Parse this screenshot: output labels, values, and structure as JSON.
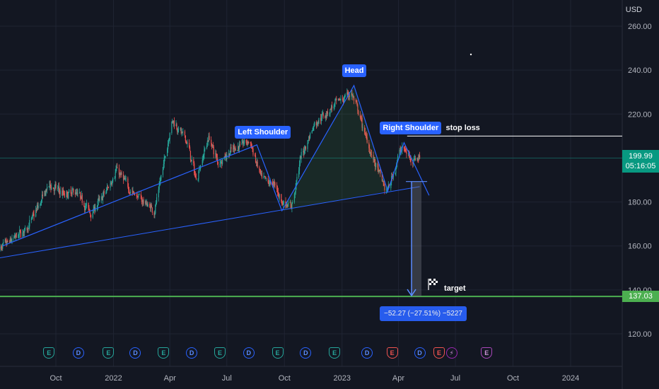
{
  "chart_data": {
    "type": "candlestick",
    "currency": "USD",
    "x_ticks": [
      "Oct",
      "2022",
      "Apr",
      "Jul",
      "Oct",
      "2023",
      "Apr",
      "Jul",
      "Oct",
      "2024"
    ],
    "y_ticks": [
      120,
      140,
      160,
      180,
      200,
      220,
      240,
      260
    ],
    "y_tick_labels": [
      "120.00",
      "140.00",
      "160.00",
      "180.00",
      "200.00",
      "220.00",
      "240.00",
      "260.00"
    ],
    "ylim": [
      110,
      262
    ],
    "last_price": 199.99,
    "last_price_label": "199.99",
    "countdown": "05:16:05",
    "target_price": 137.03,
    "target_price_label": "137.03",
    "price_path": [
      [
        "2021-07-01",
        158
      ],
      [
        "2021-08-15",
        168
      ],
      [
        "2021-09-20",
        188
      ],
      [
        "2021-10-15",
        183
      ],
      [
        "2021-11-01",
        185
      ],
      [
        "2021-11-25",
        175
      ],
      [
        "2021-12-20",
        185
      ],
      [
        "2022-01-05",
        195
      ],
      [
        "2022-01-28",
        185
      ],
      [
        "2022-03-07",
        176
      ],
      [
        "2022-04-04",
        218
      ],
      [
        "2022-04-28",
        207
      ],
      [
        "2022-05-12",
        190
      ],
      [
        "2022-06-01",
        210
      ],
      [
        "2022-06-16",
        198
      ],
      [
        "2022-07-15",
        205
      ],
      [
        "2022-08-05",
        208
      ],
      [
        "2022-08-25",
        190
      ],
      [
        "2022-09-15",
        188
      ],
      [
        "2022-09-26",
        180
      ],
      [
        "2022-10-12",
        178
      ],
      [
        "2022-10-26",
        200
      ],
      [
        "2022-11-16",
        215
      ],
      [
        "2022-12-10",
        222
      ],
      [
        "2023-01-15",
        230
      ],
      [
        "2023-02-01",
        215
      ],
      [
        "2023-02-22",
        197
      ],
      [
        "2023-03-13",
        184
      ],
      [
        "2023-04-05",
        205
      ],
      [
        "2023-04-20",
        200
      ],
      [
        "2023-05-05",
        199.99
      ]
    ],
    "pattern": {
      "name": "head and shoulders",
      "points": [
        [
          "2021-07-08",
          160
        ],
        [
          "2022-08-18",
          206
        ],
        [
          "2022-09-27",
          176
        ],
        [
          "2023-01-20",
          233
        ],
        [
          "2023-03-15",
          185
        ],
        [
          "2023-04-10",
          207
        ],
        [
          "2023-05-20",
          183
        ]
      ],
      "neckline": [
        [
          "2021-06-01",
          153
        ],
        [
          "2023-05-05",
          187
        ]
      ],
      "stop_loss": {
        "price": 210,
        "from": "2023-04-15"
      },
      "measurement": {
        "from": "2023-04-22",
        "top": 189.3,
        "bottom": 137.03
      }
    },
    "labels": {
      "left_shoulder": "Left Shoulder",
      "head": "Head",
      "right_shoulder": "Right Shoulder",
      "stop_loss": "stop loss",
      "target": "target",
      "measure": "−52.27 (−27.51%) −5227"
    },
    "events": [
      [
        "2021-09-20",
        "E"
      ],
      [
        "2021-11-06",
        "D"
      ],
      [
        "2021-12-24",
        "E"
      ],
      [
        "2022-02-05",
        "D"
      ],
      [
        "2022-03-22",
        "E"
      ],
      [
        "2022-05-06",
        "D"
      ],
      [
        "2022-06-20",
        "E"
      ],
      [
        "2022-08-05",
        "D"
      ],
      [
        "2022-09-20",
        "E"
      ],
      [
        "2022-11-04",
        "D"
      ],
      [
        "2022-12-20",
        "E"
      ],
      [
        "2023-02-10",
        "D"
      ],
      [
        "2023-03-22",
        "Er"
      ],
      [
        "2023-05-05",
        "D"
      ],
      [
        "2023-06-05",
        "Er"
      ],
      [
        "2023-06-25",
        "flash"
      ],
      [
        "2023-08-20",
        "Ep"
      ]
    ],
    "colors": {
      "up": "#26a69a",
      "down": "#ef5350",
      "pattern_line": "#2962ff",
      "target_line": "#4caf50",
      "last_price_tag": "#089981",
      "target_tag": "#4caf50",
      "stop_loss_line": "#ffffff"
    }
  }
}
